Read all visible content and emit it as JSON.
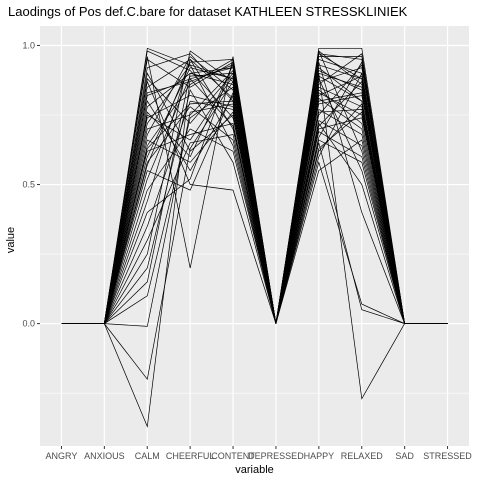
{
  "chart_data": {
    "type": "line",
    "title": "Laodings of Pos def.C.bare for dataset KATHLEEN STRESSKLINIEK",
    "xlabel": "variable",
    "ylabel": "value",
    "categories": [
      "ANGRY",
      "ANXIOUS",
      "CALM",
      "CHEERFUL",
      "CONTENT",
      "DEPRESSED",
      "HAPPY",
      "RELAXED",
      "SAD",
      "STRESSED"
    ],
    "y_ticks": [
      0.0,
      0.5,
      1.0
    ],
    "y_tick_labels": [
      "0.0",
      "0.5",
      "1.0"
    ],
    "ylim": [
      -0.44,
      1.07
    ],
    "grid": true,
    "legend": "none",
    "colors": {
      "panel": "#ebebeb",
      "grid": "#ffffff",
      "line": "#000000",
      "text": "#4d4d4d",
      "title": "#000000"
    },
    "series": [
      {
        "values": [
          0,
          0,
          0.99,
          0.93,
          0.88,
          0,
          0.99,
          0.99,
          0,
          0
        ]
      },
      {
        "values": [
          0,
          0,
          0.95,
          0.85,
          0.94,
          0,
          0.97,
          0.95,
          0,
          0
        ]
      },
      {
        "values": [
          0,
          0,
          0.92,
          0.97,
          0.8,
          0,
          0.95,
          0.9,
          0,
          0
        ]
      },
      {
        "values": [
          0,
          0,
          0.9,
          0.62,
          0.75,
          0,
          0.93,
          0.88,
          0,
          0
        ]
      },
      {
        "values": [
          0,
          0,
          0.88,
          0.72,
          0.9,
          0,
          0.98,
          0.86,
          0,
          0
        ]
      },
      {
        "values": [
          0,
          0,
          0.85,
          0.95,
          0.7,
          0,
          0.91,
          0.84,
          0,
          0
        ]
      },
      {
        "values": [
          0,
          0,
          0.82,
          0.88,
          0.92,
          0,
          0.89,
          0.8,
          0,
          0
        ]
      },
      {
        "values": [
          0,
          0,
          0.8,
          0.55,
          0.82,
          0,
          0.87,
          0.92,
          0,
          0
        ]
      },
      {
        "values": [
          0,
          0,
          0.78,
          0.9,
          0.86,
          0,
          0.85,
          0.78,
          0,
          0
        ]
      },
      {
        "values": [
          0,
          0,
          0.76,
          0.6,
          0.93,
          0,
          0.83,
          0.75,
          0,
          0
        ]
      },
      {
        "values": [
          0,
          0,
          0.74,
          0.82,
          0.78,
          0,
          0.96,
          0.96,
          0,
          0
        ]
      },
      {
        "values": [
          0,
          0,
          0.72,
          0.93,
          0.64,
          0,
          0.81,
          0.7,
          0,
          0
        ]
      },
      {
        "values": [
          0,
          0,
          0.7,
          0.75,
          0.91,
          0,
          0.79,
          0.82,
          0,
          0
        ]
      },
      {
        "values": [
          0,
          0,
          0.68,
          0.96,
          0.84,
          0,
          0.77,
          0.68,
          0,
          0
        ]
      },
      {
        "values": [
          0,
          0,
          0.66,
          0.58,
          0.76,
          0,
          0.75,
          0.93,
          0,
          0
        ]
      },
      {
        "values": [
          0,
          0,
          0.64,
          0.86,
          0.95,
          0,
          0.73,
          0.64,
          0,
          0
        ]
      },
      {
        "values": [
          0,
          0,
          0.62,
          0.68,
          0.72,
          0,
          0.71,
          0.87,
          0,
          0
        ]
      },
      {
        "values": [
          0,
          0,
          0.6,
          0.92,
          0.88,
          0,
          0.69,
          0.6,
          0,
          0
        ]
      },
      {
        "values": [
          0,
          0,
          0.58,
          0.78,
          0.66,
          0,
          0.92,
          0.8,
          0,
          0
        ]
      },
      {
        "values": [
          0,
          0,
          0.55,
          0.48,
          0.83,
          0,
          0.66,
          0.58,
          0,
          0
        ]
      },
      {
        "values": [
          0,
          0,
          0.52,
          0.89,
          0.9,
          0,
          0.63,
          0.76,
          0,
          0
        ]
      },
      {
        "values": [
          0,
          0,
          0.48,
          0.7,
          0.62,
          0,
          0.88,
          0.55,
          0,
          0
        ]
      },
      {
        "values": [
          0,
          0,
          0.44,
          0.95,
          0.81,
          0,
          0.6,
          0.9,
          0,
          0
        ]
      },
      {
        "values": [
          0,
          0,
          0.4,
          0.52,
          0.94,
          0,
          0.84,
          0.72,
          0,
          0
        ]
      },
      {
        "values": [
          0,
          0,
          0.35,
          0.8,
          0.77,
          0,
          0.55,
          0.66,
          0,
          0
        ]
      },
      {
        "values": [
          0,
          0,
          0.3,
          0.65,
          0.68,
          0,
          0.9,
          0.85,
          0,
          0
        ]
      },
      {
        "values": [
          0,
          0,
          0.25,
          0.98,
          0.87,
          0,
          0.72,
          0.5,
          0,
          0
        ]
      },
      {
        "values": [
          0,
          0,
          0.2,
          0.84,
          0.58,
          0,
          0.8,
          0.83,
          0,
          0
        ]
      },
      {
        "values": [
          0,
          0,
          0.15,
          0.9,
          0.92,
          0,
          0.67,
          0.94,
          0,
          0
        ]
      },
      {
        "values": [
          0,
          0,
          0.1,
          0.74,
          0.85,
          0,
          0.94,
          0.4,
          0,
          0
        ]
      },
      {
        "values": [
          0,
          0,
          0.96,
          0.2,
          0.96,
          0,
          0.86,
          0.97,
          0,
          0
        ]
      },
      {
        "values": [
          0,
          0,
          0.87,
          0.5,
          0.48,
          0,
          0.98,
          0.62,
          0,
          0
        ]
      },
      {
        "values": [
          0,
          0,
          0.98,
          0.91,
          0.74,
          0,
          0.65,
          0.05,
          0,
          0
        ]
      },
      {
        "values": [
          0,
          0,
          0.75,
          0.66,
          0.89,
          0,
          0.58,
          0.07,
          0,
          0
        ]
      },
      {
        "values": [
          0,
          0,
          0.83,
          0.87,
          0.93,
          0,
          0.7,
          0.74,
          0,
          0
        ]
      },
      {
        "values": [
          0,
          0,
          -0.01,
          0.76,
          0.79,
          0,
          0.82,
          0.89,
          0,
          0
        ]
      },
      {
        "values": [
          0,
          0,
          -0.2,
          0.63,
          0.87,
          0,
          0.76,
          0.77,
          0,
          0
        ]
      },
      {
        "values": [
          0,
          0,
          -0.37,
          0.88,
          0.71,
          0,
          0.9,
          -0.27,
          0,
          0
        ]
      },
      {
        "values": [
          0,
          0,
          0.57,
          0.94,
          0.95,
          0,
          0.97,
          0.88,
          0,
          0
        ]
      },
      {
        "values": [
          0,
          0,
          0.63,
          0.79,
          0.8,
          0,
          0.62,
          0.79,
          0,
          0
        ]
      }
    ]
  }
}
